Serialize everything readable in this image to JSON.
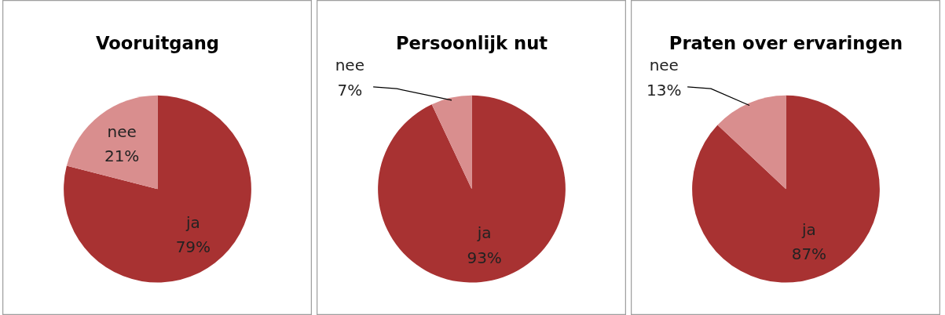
{
  "chart_data": [
    {
      "type": "pie",
      "title": "Vooruitgang",
      "categories": [
        "ja",
        "nee"
      ],
      "values": [
        79,
        21
      ],
      "colors": [
        "#a83232",
        "#d98e8e"
      ],
      "value_labels": [
        "79%",
        "21%"
      ]
    },
    {
      "type": "pie",
      "title": "Persoonlijk nut",
      "categories": [
        "ja",
        "nee"
      ],
      "values": [
        93,
        7
      ],
      "colors": [
        "#a83232",
        "#d98e8e"
      ],
      "value_labels": [
        "93%",
        "7%"
      ]
    },
    {
      "type": "pie",
      "title": "Praten over ervaringen",
      "categories": [
        "ja",
        "nee"
      ],
      "values": [
        87,
        13
      ],
      "colors": [
        "#a83232",
        "#d98e8e"
      ],
      "value_labels": [
        "87%",
        "13%"
      ]
    }
  ]
}
